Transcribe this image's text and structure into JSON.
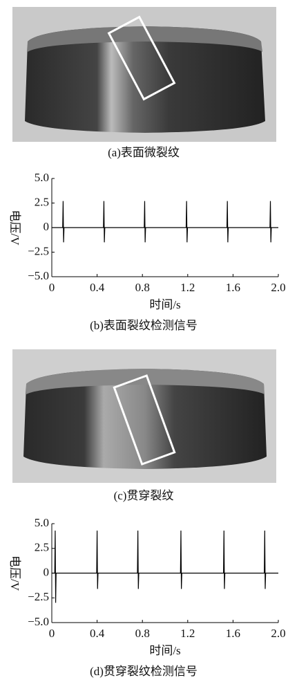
{
  "photos": [
    {
      "caption": "(a)表面微裂纹"
    },
    {
      "caption": "(c)贯穿裂纹"
    }
  ],
  "chart_data": [
    {
      "type": "line",
      "caption": "(b)表面裂纹检测信号",
      "xlabel": "时间/s",
      "ylabel": "电压/V",
      "x": [
        0,
        0.096,
        0.1,
        0.104,
        0.108,
        0.456,
        0.46,
        0.464,
        0.468,
        0.816,
        0.82,
        0.824,
        0.828,
        1.186,
        1.19,
        1.194,
        1.198,
        1.546,
        1.55,
        1.554,
        1.558,
        1.926,
        1.93,
        1.934,
        1.938,
        2
      ],
      "series": [
        {
          "color": "#000000",
          "values": [
            0,
            0,
            2.7,
            -1.5,
            0,
            0,
            2.7,
            -1.5,
            0,
            0,
            2.7,
            -1.5,
            0,
            0,
            2.7,
            -1.5,
            0,
            0,
            2.7,
            -1.5,
            0,
            0,
            2.7,
            -1.5,
            0,
            0
          ]
        }
      ],
      "xlim": [
        0,
        2
      ],
      "ylim": [
        -5,
        5
      ],
      "xticks": [
        0,
        0.4,
        0.8,
        1.2,
        1.6,
        {
          "value": 2,
          "label": "2.0"
        }
      ],
      "yticks": [
        {
          "value": 5,
          "label": "5.0"
        },
        {
          "value": 2.5,
          "label": "2.5"
        },
        0,
        {
          "value": -2.5,
          "label": "−2.5"
        },
        {
          "value": -5,
          "label": "−5.0"
        }
      ]
    },
    {
      "type": "line",
      "caption": "(d)贯穿裂纹检测信号",
      "xlabel": "时间/s",
      "ylabel": "电压/V",
      "x": [
        0,
        0.026,
        0.03,
        0.034,
        0.038,
        0.396,
        0.4,
        0.404,
        0.408,
        0.756,
        0.76,
        0.764,
        0.768,
        1.136,
        1.14,
        1.144,
        1.148,
        1.516,
        1.52,
        1.524,
        1.528,
        1.876,
        1.88,
        1.884,
        1.888,
        2
      ],
      "series": [
        {
          "color": "#000000",
          "values": [
            0,
            0,
            4.3,
            -3,
            0,
            0,
            4.3,
            -1.6,
            0,
            0,
            4.3,
            -1.6,
            0,
            0,
            4.3,
            -1.6,
            0,
            0,
            4.3,
            -1.6,
            0,
            0,
            4.3,
            -1.6,
            0,
            0
          ]
        }
      ],
      "xlim": [
        0,
        2
      ],
      "ylim": [
        -5,
        5
      ],
      "xticks": [
        0,
        0.4,
        0.8,
        1.2,
        1.6,
        {
          "value": 2,
          "label": "2.0"
        }
      ],
      "yticks": [
        {
          "value": 5,
          "label": "5.0"
        },
        {
          "value": 2.5,
          "label": "2.5"
        },
        0,
        {
          "value": -2.5,
          "label": "−2.5"
        },
        {
          "value": -5,
          "label": "−5.0"
        }
      ]
    }
  ]
}
